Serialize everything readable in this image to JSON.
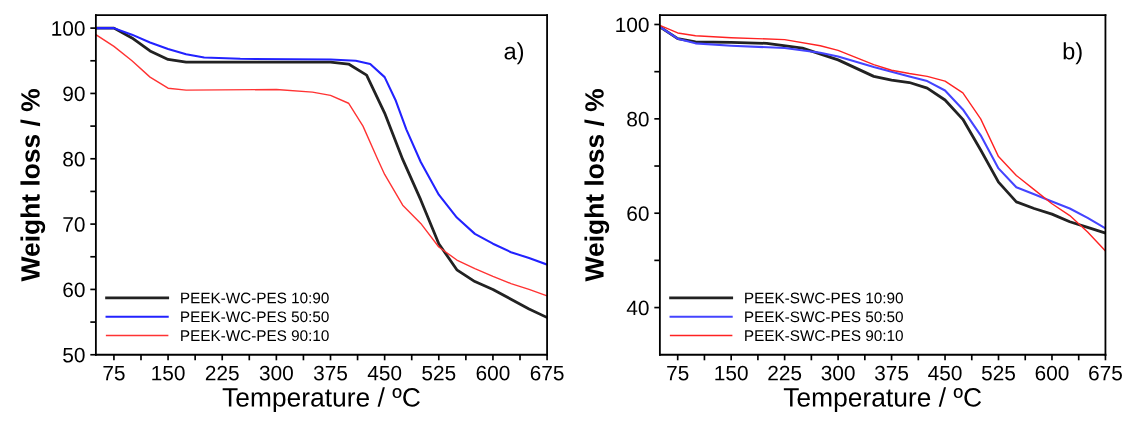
{
  "chart_data": [
    {
      "type": "line",
      "xlabel": "Temperature / ºC",
      "ylabel": "Weight loss / %",
      "annotations": [
        "a)"
      ],
      "legend": "bottom left",
      "grid": false,
      "marker": "none",
      "line_style": "solid",
      "xlim": [
        50,
        675
      ],
      "ylim": [
        50,
        102
      ],
      "xticks": [
        75,
        {
          "value": 112.5,
          "label": null
        },
        150,
        {
          "value": 187.5,
          "label": null
        },
        225,
        {
          "value": 262.5,
          "label": null
        },
        300,
        {
          "value": 337.5,
          "label": null
        },
        375,
        {
          "value": 412.5,
          "label": null
        },
        450,
        {
          "value": 487.5,
          "label": null
        },
        525,
        {
          "value": 562.5,
          "label": null
        },
        600,
        {
          "value": 637.5,
          "label": null
        },
        675
      ],
      "yticks": [
        50,
        {
          "value": 55,
          "label": null
        },
        60,
        {
          "value": 65,
          "label": null
        },
        70,
        {
          "value": 75,
          "label": null
        },
        80,
        {
          "value": 85,
          "label": null
        },
        90,
        {
          "value": 95,
          "label": null
        },
        100
      ],
      "series": [
        {
          "name": "PEEK-WC-PES 10:90",
          "color": "#222222",
          "x": [
            50,
            75,
            100,
            125,
            150,
            175,
            250,
            375,
            400,
            425,
            450,
            475,
            500,
            525,
            550,
            575,
            600,
            625,
            650,
            675
          ],
          "values": [
            100,
            100,
            98.5,
            96.5,
            95.2,
            94.8,
            94.8,
            94.8,
            94.5,
            92.8,
            87,
            79.9,
            73.7,
            67,
            63,
            61.2,
            60,
            58.5,
            57,
            55.7
          ]
        },
        {
          "name": "PEEK-WC-PES 50:50",
          "color": "#2222ff",
          "x": [
            50,
            75,
            100,
            125,
            150,
            175,
            200,
            250,
            375,
            410,
            430,
            450,
            465,
            480,
            500,
            525,
            550,
            575,
            600,
            625,
            650,
            675
          ],
          "values": [
            100,
            100,
            99,
            97.8,
            96.8,
            96,
            95.5,
            95.3,
            95.2,
            95,
            94.5,
            92.5,
            89,
            84.5,
            79.5,
            74.5,
            71,
            68.5,
            67,
            65.7,
            64.8,
            63.8
          ]
        },
        {
          "name": "PEEK-WC-PES 90:10",
          "color": "#ff3333",
          "x": [
            50,
            75,
            100,
            125,
            150,
            175,
            300,
            350,
            375,
            400,
            420,
            440,
            450,
            475,
            500,
            525,
            550,
            575,
            600,
            625,
            650,
            675
          ],
          "values": [
            99,
            97.2,
            95,
            92.5,
            90.8,
            90.5,
            90.6,
            90.2,
            89.7,
            88.5,
            85,
            80,
            77.6,
            72.9,
            70.1,
            66.5,
            64.5,
            63.2,
            62,
            60.9,
            60,
            59
          ]
        }
      ]
    },
    {
      "type": "line",
      "xlabel": "Temperature / ºC",
      "ylabel": "Weight loss / %",
      "annotations": [
        "b)"
      ],
      "legend": "bottom left",
      "grid": false,
      "marker": "none",
      "line_style": "solid",
      "xlim": [
        50,
        675
      ],
      "ylim": [
        30,
        102
      ],
      "xticks": [
        75,
        {
          "value": 112.5,
          "label": null
        },
        150,
        {
          "value": 187.5,
          "label": null
        },
        225,
        {
          "value": 262.5,
          "label": null
        },
        300,
        {
          "value": 337.5,
          "label": null
        },
        375,
        {
          "value": 412.5,
          "label": null
        },
        450,
        {
          "value": 487.5,
          "label": null
        },
        525,
        {
          "value": 562.5,
          "label": null
        },
        600,
        {
          "value": 637.5,
          "label": null
        },
        675
      ],
      "yticks": [
        40,
        {
          "value": 50,
          "label": null
        },
        60,
        {
          "value": 70,
          "label": null
        },
        80,
        {
          "value": 90,
          "label": null
        },
        100
      ],
      "series": [
        {
          "name": "PEEK-SWC-PES 10:90",
          "color": "#222222",
          "x": [
            50,
            75,
            100,
            150,
            200,
            250,
            300,
            350,
            375,
            400,
            425,
            450,
            475,
            500,
            525,
            550,
            575,
            600,
            625,
            650,
            675
          ],
          "values": [
            99.5,
            97,
            96.3,
            96.2,
            96,
            95,
            92.5,
            89,
            88.2,
            87.7,
            86.5,
            84,
            79.9,
            73.4,
            66.6,
            62.4,
            61,
            59.8,
            58.2,
            57,
            55.8
          ]
        },
        {
          "name": "PEEK-SWC-PES 50:50",
          "color": "#4444ff",
          "x": [
            50,
            75,
            100,
            150,
            225,
            275,
            300,
            350,
            375,
            400,
            425,
            450,
            475,
            500,
            525,
            550,
            575,
            600,
            625,
            650,
            675
          ],
          "values": [
            99.5,
            97,
            96,
            95.5,
            95,
            94,
            93.2,
            91,
            90,
            89,
            88,
            86,
            82,
            76.5,
            69.5,
            65.5,
            64,
            62.5,
            61,
            59,
            56.8
          ]
        },
        {
          "name": "PEEK-SWC-PES 90:10",
          "color": "#ff2222",
          "x": [
            50,
            75,
            100,
            150,
            225,
            275,
            300,
            350,
            375,
            400,
            425,
            450,
            475,
            500,
            525,
            550,
            575,
            600,
            625,
            650,
            675
          ],
          "values": [
            99.8,
            98.2,
            97.6,
            97.2,
            96.8,
            95.5,
            94.5,
            91.5,
            90.3,
            89.6,
            89,
            88,
            85.5,
            80,
            72,
            68,
            65,
            62,
            59.5,
            56,
            52
          ]
        }
      ]
    }
  ]
}
